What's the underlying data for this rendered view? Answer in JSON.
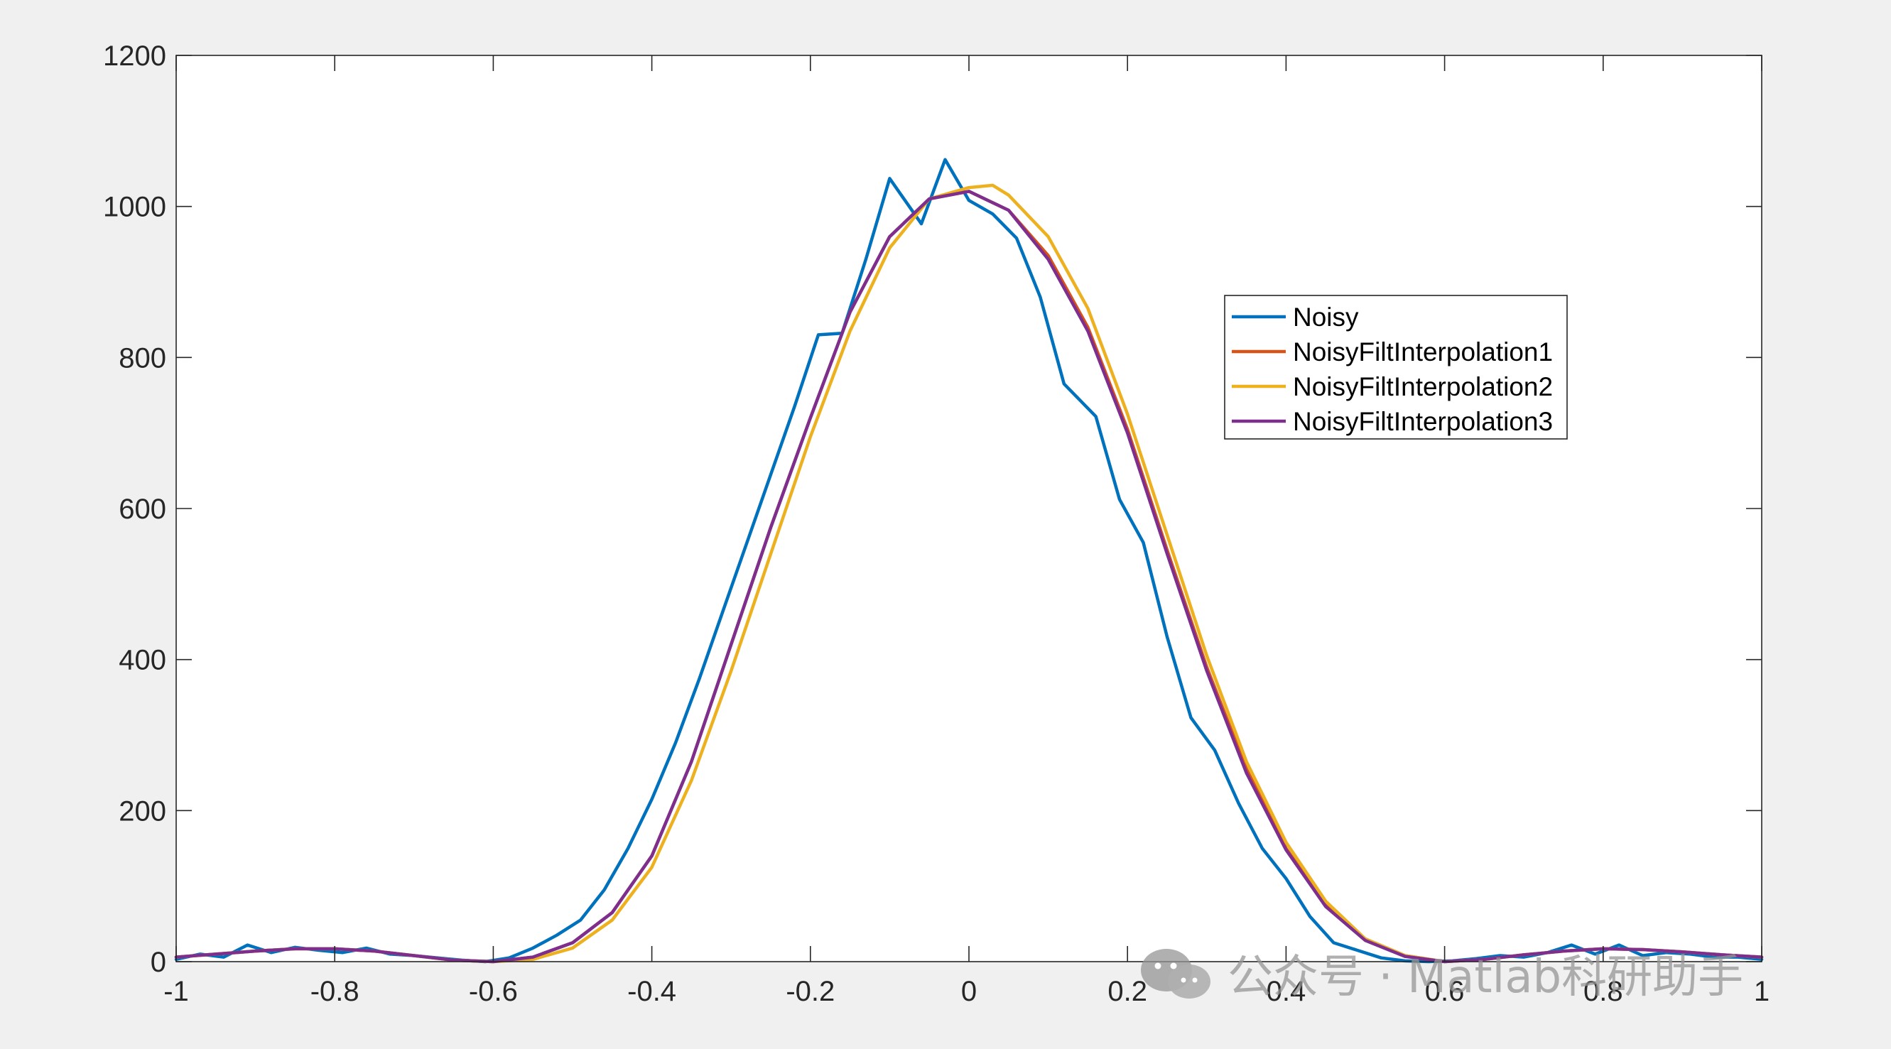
{
  "chart_data": {
    "type": "line",
    "title": "",
    "xlabel": "",
    "ylabel": "",
    "xlim": [
      -1,
      1
    ],
    "ylim": [
      0,
      1200
    ],
    "x_ticks": [
      -1,
      -0.8,
      -0.6,
      -0.4,
      -0.2,
      0,
      0.2,
      0.4,
      0.6,
      0.8,
      1
    ],
    "x_tick_labels": [
      "-1",
      "-0.8",
      "-0.6",
      "-0.4",
      "-0.2",
      "0",
      "0.2",
      "0.4",
      "0.6",
      "0.8",
      "1"
    ],
    "y_ticks": [
      0,
      200,
      400,
      600,
      800,
      1000,
      1200
    ],
    "y_tick_labels": [
      "0",
      "200",
      "400",
      "600",
      "800",
      "1000",
      "1200"
    ],
    "grid": false,
    "legend_position": "upper-right inside",
    "series": [
      {
        "name": "Noisy",
        "color": "#0072BD",
        "x": [
          -1,
          -0.97,
          -0.94,
          -0.91,
          -0.88,
          -0.85,
          -0.82,
          -0.79,
          -0.76,
          -0.73,
          -0.7,
          -0.67,
          -0.64,
          -0.61,
          -0.58,
          -0.55,
          -0.52,
          -0.49,
          -0.46,
          -0.43,
          -0.4,
          -0.37,
          -0.34,
          -0.31,
          -0.28,
          -0.25,
          -0.22,
          -0.19,
          -0.16,
          -0.13,
          -0.1,
          -0.06,
          -0.03,
          0,
          0.03,
          0.06,
          0.09,
          0.12,
          0.16,
          0.19,
          0.22,
          0.25,
          0.28,
          0.31,
          0.34,
          0.37,
          0.4,
          0.43,
          0.46,
          0.49,
          0.52,
          0.55,
          0.58,
          0.61,
          0.64,
          0.67,
          0.7,
          0.73,
          0.76,
          0.79,
          0.82,
          0.85,
          0.88,
          0.91,
          0.94,
          0.97,
          1
        ],
        "values": [
          3,
          10,
          6,
          22,
          12,
          19,
          15,
          12,
          18,
          10,
          8,
          5,
          2,
          0,
          5,
          18,
          35,
          55,
          95,
          150,
          215,
          290,
          375,
          465,
          555,
          645,
          735,
          830,
          832,
          930,
          1037,
          977,
          1062,
          1008,
          990,
          958,
          880,
          765,
          722,
          612,
          555,
          430,
          323,
          280,
          210,
          150,
          110,
          60,
          25,
          15,
          5,
          1,
          0,
          1,
          4,
          8,
          6,
          12,
          22,
          10,
          22,
          8,
          12,
          10,
          6,
          6,
          3
        ]
      },
      {
        "name": "NoisyFiltInterpolation1",
        "color": "#D95319",
        "x": [
          -1,
          -0.95,
          -0.9,
          -0.85,
          -0.8,
          -0.75,
          -0.7,
          -0.65,
          -0.6,
          -0.55,
          -0.5,
          -0.45,
          -0.4,
          -0.35,
          -0.3,
          -0.25,
          -0.2,
          -0.15,
          -0.1,
          -0.05,
          0,
          0.05,
          0.1,
          0.15,
          0.2,
          0.25,
          0.3,
          0.35,
          0.4,
          0.45,
          0.5,
          0.55,
          0.6,
          0.65,
          0.7,
          0.75,
          0.8,
          0.85,
          0.9,
          0.95,
          1
        ],
        "values": [
          6,
          10,
          14,
          17,
          17,
          14,
          8,
          2,
          0,
          6,
          25,
          65,
          140,
          265,
          420,
          575,
          720,
          860,
          960,
          1010,
          1020,
          995,
          935,
          840,
          705,
          545,
          390,
          255,
          150,
          75,
          30,
          8,
          0,
          3,
          9,
          14,
          17,
          16,
          13,
          9,
          6
        ]
      },
      {
        "name": "NoisyFiltInterpolation2",
        "color": "#EDB120",
        "x": [
          -1,
          -0.95,
          -0.9,
          -0.85,
          -0.8,
          -0.75,
          -0.7,
          -0.65,
          -0.6,
          -0.55,
          -0.5,
          -0.45,
          -0.4,
          -0.35,
          -0.3,
          -0.25,
          -0.2,
          -0.15,
          -0.1,
          -0.05,
          0,
          0.03,
          0.05,
          0.1,
          0.15,
          0.2,
          0.25,
          0.3,
          0.35,
          0.4,
          0.45,
          0.5,
          0.55,
          0.6,
          0.65,
          0.7,
          0.75,
          0.8,
          0.85,
          0.9,
          0.95,
          1
        ],
        "values": [
          6,
          10,
          14,
          17,
          17,
          14,
          8,
          2,
          0,
          3,
          18,
          55,
          125,
          240,
          385,
          540,
          695,
          835,
          945,
          1010,
          1025,
          1028,
          1015,
          960,
          865,
          725,
          565,
          405,
          265,
          158,
          80,
          30,
          8,
          0,
          3,
          9,
          14,
          17,
          16,
          13,
          9,
          6
        ]
      },
      {
        "name": "NoisyFiltInterpolation3",
        "color": "#7E2F8E",
        "x": [
          -1,
          -0.95,
          -0.9,
          -0.85,
          -0.8,
          -0.75,
          -0.7,
          -0.65,
          -0.6,
          -0.55,
          -0.5,
          -0.45,
          -0.4,
          -0.35,
          -0.3,
          -0.25,
          -0.2,
          -0.15,
          -0.1,
          -0.05,
          0,
          0.05,
          0.1,
          0.15,
          0.2,
          0.25,
          0.3,
          0.35,
          0.4,
          0.45,
          0.5,
          0.55,
          0.6,
          0.65,
          0.7,
          0.75,
          0.8,
          0.85,
          0.9,
          0.95,
          1
        ],
        "values": [
          6,
          10,
          14,
          17,
          17,
          14,
          8,
          2,
          0,
          6,
          25,
          65,
          140,
          265,
          420,
          575,
          720,
          860,
          960,
          1010,
          1020,
          995,
          930,
          835,
          700,
          540,
          385,
          250,
          148,
          73,
          28,
          7,
          0,
          3,
          9,
          14,
          17,
          16,
          13,
          9,
          6
        ]
      }
    ]
  },
  "watermark": {
    "text": "公众号 · Matlab科研助手",
    "icon": "wechat-icon"
  }
}
